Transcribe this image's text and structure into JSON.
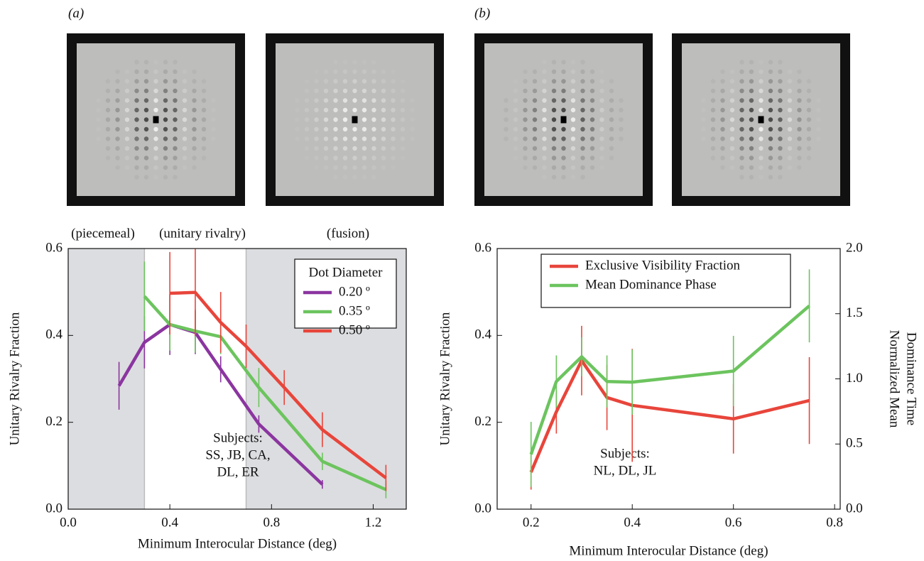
{
  "chart_data": [
    {
      "type": "line",
      "panel_label": "(a)",
      "xlabel": "Minimum Interocular Distance (deg)",
      "ylabel": "Unitary Rivalry Fraction",
      "xlim": [
        0,
        1.33
      ],
      "ylim": [
        0,
        0.6
      ],
      "xticks": [
        {
          "value": 0,
          "label": "0.0"
        },
        0.4,
        0.8,
        1.2
      ],
      "yticks": [
        {
          "value": 0,
          "label": "0.0"
        },
        0.2,
        0.4,
        0.6
      ],
      "shaded_regions": [
        [
          0,
          0.3
        ],
        [
          0.7,
          1.33
        ]
      ],
      "region_labels": [
        "(piecemeal)",
        "(unitary rivalry)",
        "(fusion)"
      ],
      "note": [
        "Subjects:",
        "SS, JB, CA,",
        "DL, ER"
      ],
      "legend_title": "Dot Diameter",
      "legend": "upper right",
      "series": [
        {
          "name": "0.20 º",
          "color": "#8b35a0",
          "x": [
            0.2,
            0.3,
            0.4,
            0.5,
            0.6,
            0.75,
            1.0
          ],
          "values": [
            0.284,
            0.384,
            0.425,
            0.407,
            0.322,
            0.196,
            0.057
          ],
          "errors": [
            0.055,
            0.06,
            0.07,
            0.05,
            0.03,
            0.02,
            0.01
          ]
        },
        {
          "name": "0.35 º",
          "color": "#6cc45e",
          "x": [
            0.3,
            0.4,
            0.5,
            0.6,
            0.75,
            1.0,
            1.25
          ],
          "values": [
            0.49,
            0.425,
            0.41,
            0.397,
            0.28,
            0.11,
            0.045
          ],
          "errors": [
            0.08,
            0.06,
            0.05,
            0.04,
            0.045,
            0.02,
            0.02
          ]
        },
        {
          "name": "0.50 º",
          "color": "#e8453b",
          "x": [
            0.4,
            0.5,
            0.6,
            0.7,
            0.85,
            1.0,
            1.25
          ],
          "values": [
            0.497,
            0.499,
            0.43,
            0.375,
            0.28,
            0.183,
            0.072
          ],
          "errors": [
            0.095,
            0.1,
            0.07,
            0.05,
            0.04,
            0.04,
            0.03
          ]
        }
      ]
    },
    {
      "type": "line",
      "panel_label": "(b)",
      "xlabel": "Minimum Interocular Distance (deg)",
      "ylabel": "Unitary Rivalry Fraction",
      "y2label": [
        "Normalized Mean",
        "Dominance Time"
      ],
      "xlim": [
        0.133,
        0.811
      ],
      "ylim": [
        0,
        0.6
      ],
      "y2lim": [
        0,
        2
      ],
      "xticks": [
        0.2,
        0.4,
        0.6,
        0.8
      ],
      "yticks": [
        {
          "value": 0,
          "label": "0.0"
        },
        0.2,
        0.4,
        0.6
      ],
      "y2ticks": [
        {
          "value": 0,
          "label": "0.0"
        },
        0.5,
        {
          "value": 1,
          "label": "1.0"
        },
        1.5,
        {
          "value": 2,
          "label": "2.0"
        }
      ],
      "note": [
        "Subjects:",
        "NL, DL, JL"
      ],
      "legend": "upper left",
      "series": [
        {
          "name": "Exclusive Visibility Fraction",
          "color": "#e8453b",
          "x": [
            0.2,
            0.25,
            0.3,
            0.35,
            0.4,
            0.6,
            0.75
          ],
          "values": [
            0.085,
            0.224,
            0.342,
            0.257,
            0.239,
            0.208,
            0.25
          ],
          "errors": [
            0.04,
            0.05,
            0.08,
            0.075,
            0.13,
            0.08,
            0.1
          ]
        },
        {
          "name": "Mean Dominance Phase",
          "color": "#6cc45e",
          "axis": "y2",
          "x": [
            0.2,
            0.25,
            0.3,
            0.35,
            0.4,
            0.6,
            0.75
          ],
          "values": [
            0.42,
            0.98,
            1.17,
            0.98,
            0.975,
            1.06,
            1.56
          ],
          "errors": [
            0.25,
            0.2,
            0.15,
            0.2,
            0.25,
            0.27,
            0.28
          ]
        }
      ]
    }
  ]
}
